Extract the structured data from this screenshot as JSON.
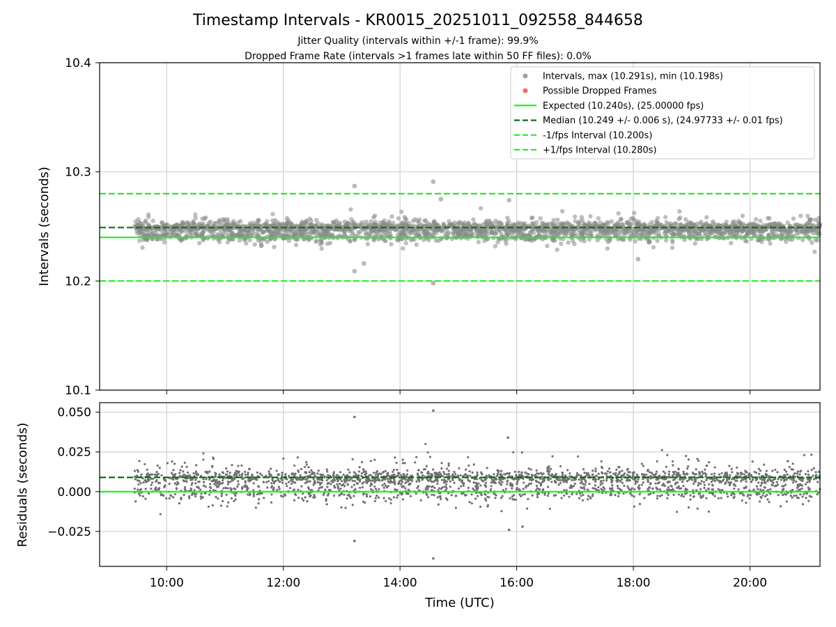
{
  "chart_data": [
    {
      "type": "scatter",
      "title": "Timestamp Intervals - KR0015_20251011_092558_844658",
      "subtitle_lines": [
        "Jitter Quality (intervals within +/-1 frame): 99.9%",
        "Dropped Frame Rate (intervals >1 frames late within 50 FF files): 0.0%"
      ],
      "xlabel": "",
      "ylabel": "Intervals (seconds)",
      "xlim_hours": [
        8.85,
        21.2
      ],
      "ylim": [
        10.1,
        10.4
      ],
      "yticks": [
        "10.1",
        "10.2",
        "10.3",
        "10.4"
      ],
      "xticks": [
        "10:00",
        "12:00",
        "14:00",
        "16:00",
        "18:00",
        "20:00"
      ],
      "xtick_hours": [
        10,
        12,
        14,
        16,
        18,
        20
      ],
      "grid": true,
      "data_range_hours": [
        9.45,
        21.2
      ],
      "expected": 10.24,
      "median": 10.249,
      "lower_interval": 10.2,
      "upper_interval": 10.28,
      "intervals_max": 10.291,
      "intervals_min": 10.198,
      "legend_position": "top-right",
      "legend": [
        {
          "label": "Intervals, max (10.291s), min (10.198s)",
          "kind": "dot",
          "color": "#a0a0a0"
        },
        {
          "label": "Possible Dropped Frames",
          "kind": "dot",
          "color": "#f06a6a"
        },
        {
          "label": "Expected (10.240s), (25.00000 fps)",
          "kind": "solid",
          "color": "#22ee22"
        },
        {
          "label": "Median (10.249 +/- 0.006 s), (24.97733 +/- 0.01 fps)",
          "kind": "dashed",
          "color": "#0a6e0a"
        },
        {
          "label": "-1/fps Interval (10.200s)",
          "kind": "dashed",
          "color": "#22ee22"
        },
        {
          "label": "+1/fps Interval (10.280s)",
          "kind": "dashed",
          "color": "#22ee22"
        }
      ],
      "outliers": [
        {
          "t": 13.22,
          "v": 10.287
        },
        {
          "t": 14.57,
          "v": 10.291
        },
        {
          "t": 13.22,
          "v": 10.209
        },
        {
          "t": 14.57,
          "v": 10.198
        },
        {
          "t": 15.87,
          "v": 10.274
        },
        {
          "t": 18.08,
          "v": 10.22
        },
        {
          "t": 13.38,
          "v": 10.216
        },
        {
          "t": 14.7,
          "v": 10.275
        }
      ]
    },
    {
      "type": "scatter",
      "xlabel": "Time (UTC)",
      "ylabel": "Residuals (seconds)",
      "xlim_hours": [
        8.85,
        21.2
      ],
      "ylim": [
        -0.047,
        0.056
      ],
      "yticks": [
        "−0.025",
        "0.000",
        "0.025",
        "0.050"
      ],
      "ytick_values": [
        -0.025,
        0.0,
        0.025,
        0.05
      ],
      "xticks": [
        "10:00",
        "12:00",
        "14:00",
        "16:00",
        "18:00",
        "20:00"
      ],
      "xtick_hours": [
        10,
        12,
        14,
        16,
        18,
        20
      ],
      "grid": true,
      "zero_line": 0.0,
      "median_offset": 0.009,
      "outliers": [
        {
          "t": 13.22,
          "v": 0.047
        },
        {
          "t": 14.57,
          "v": 0.051
        },
        {
          "t": 13.22,
          "v": -0.031
        },
        {
          "t": 14.57,
          "v": -0.042
        },
        {
          "t": 15.87,
          "v": -0.024
        },
        {
          "t": 16.1,
          "v": -0.022
        },
        {
          "t": 15.85,
          "v": 0.034
        }
      ]
    }
  ]
}
